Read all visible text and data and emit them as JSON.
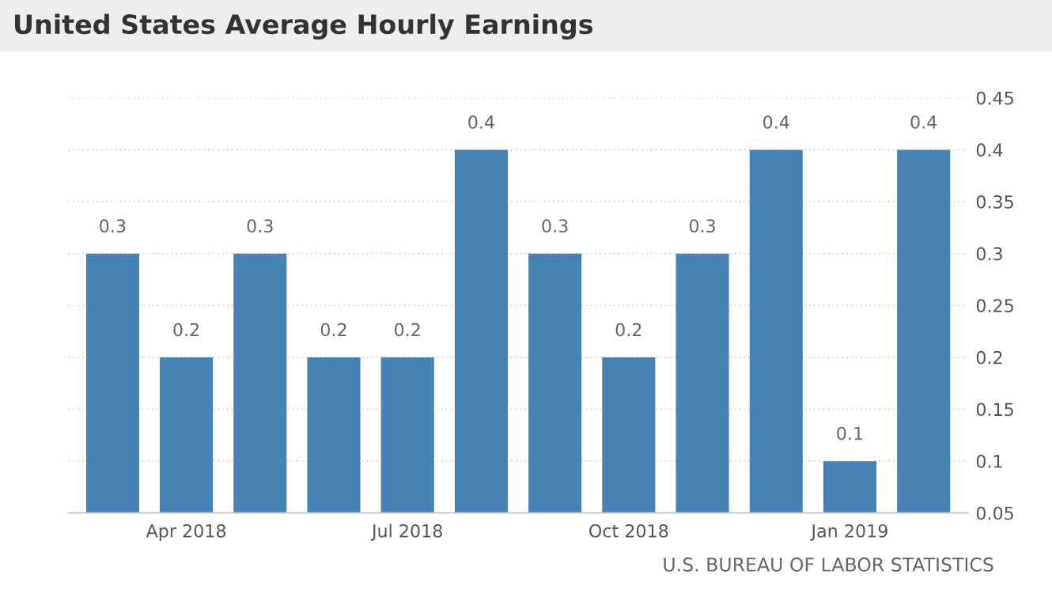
{
  "chart_data": {
    "type": "bar",
    "title": "United States Average Hourly Earnings",
    "categories": [
      null,
      "Apr 2018",
      null,
      null,
      "Jul 2018",
      null,
      null,
      "Oct 2018",
      null,
      null,
      "Jan 2019",
      null
    ],
    "values": [
      0.3,
      0.2,
      0.3,
      0.2,
      0.2,
      0.4,
      0.3,
      0.2,
      0.3,
      0.4,
      0.1,
      0.4
    ],
    "color": "#4682b4",
    "ylim": [
      0.05,
      0.45
    ],
    "yticks": [
      0.05,
      0.1,
      0.15,
      0.2,
      0.25,
      0.3,
      0.35,
      0.4,
      0.45
    ],
    "grid": "y",
    "data_labels": true,
    "annotations": [
      "U.S. BUREAU OF LABOR STATISTICS"
    ]
  }
}
